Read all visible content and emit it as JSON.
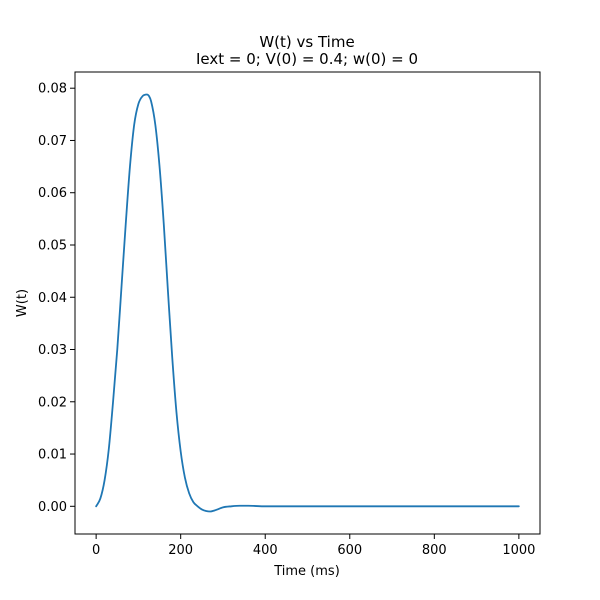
{
  "chart_data": {
    "type": "line",
    "title": "W(t) vs Time",
    "subtitle": "Iext = 0; V(0) = 0.4; w(0) = 0",
    "xlabel": "Time (ms)",
    "ylabel": "W(t)",
    "xlim": [
      -50,
      1050
    ],
    "ylim": [
      -0.0053,
      0.0831
    ],
    "xticks": [
      0,
      200,
      400,
      600,
      800,
      1000
    ],
    "xtick_labels": [
      "0",
      "200",
      "400",
      "600",
      "800",
      "1000"
    ],
    "yticks": [
      0.0,
      0.01,
      0.02,
      0.03,
      0.04,
      0.05,
      0.06,
      0.07,
      0.08
    ],
    "ytick_labels": [
      "0.00",
      "0.01",
      "0.02",
      "0.03",
      "0.04",
      "0.05",
      "0.06",
      "0.07",
      "0.08"
    ],
    "grid": false,
    "series": [
      {
        "color": "#1f77b4",
        "x": [
          0,
          10,
          20,
          30,
          40,
          50,
          60,
          70,
          80,
          90,
          100,
          110,
          120,
          125,
          130,
          140,
          150,
          160,
          170,
          180,
          190,
          200,
          210,
          220,
          230,
          240,
          250,
          260,
          270,
          280,
          290,
          300,
          320,
          340,
          360,
          400,
          500,
          600,
          700,
          800,
          900,
          1000
        ],
        "y": [
          0.0,
          0.0015,
          0.005,
          0.011,
          0.02,
          0.03,
          0.042,
          0.054,
          0.065,
          0.073,
          0.077,
          0.0785,
          0.0788,
          0.0785,
          0.0775,
          0.073,
          0.065,
          0.054,
          0.041,
          0.0285,
          0.018,
          0.0105,
          0.0055,
          0.0025,
          0.0008,
          0.0,
          -0.0006,
          -0.0009,
          -0.001,
          -0.0008,
          -0.0005,
          -0.0002,
          0.0,
          0.0001,
          0.0001,
          0.0,
          0.0,
          0.0,
          0.0,
          0.0,
          0.0,
          0.0
        ]
      }
    ]
  }
}
